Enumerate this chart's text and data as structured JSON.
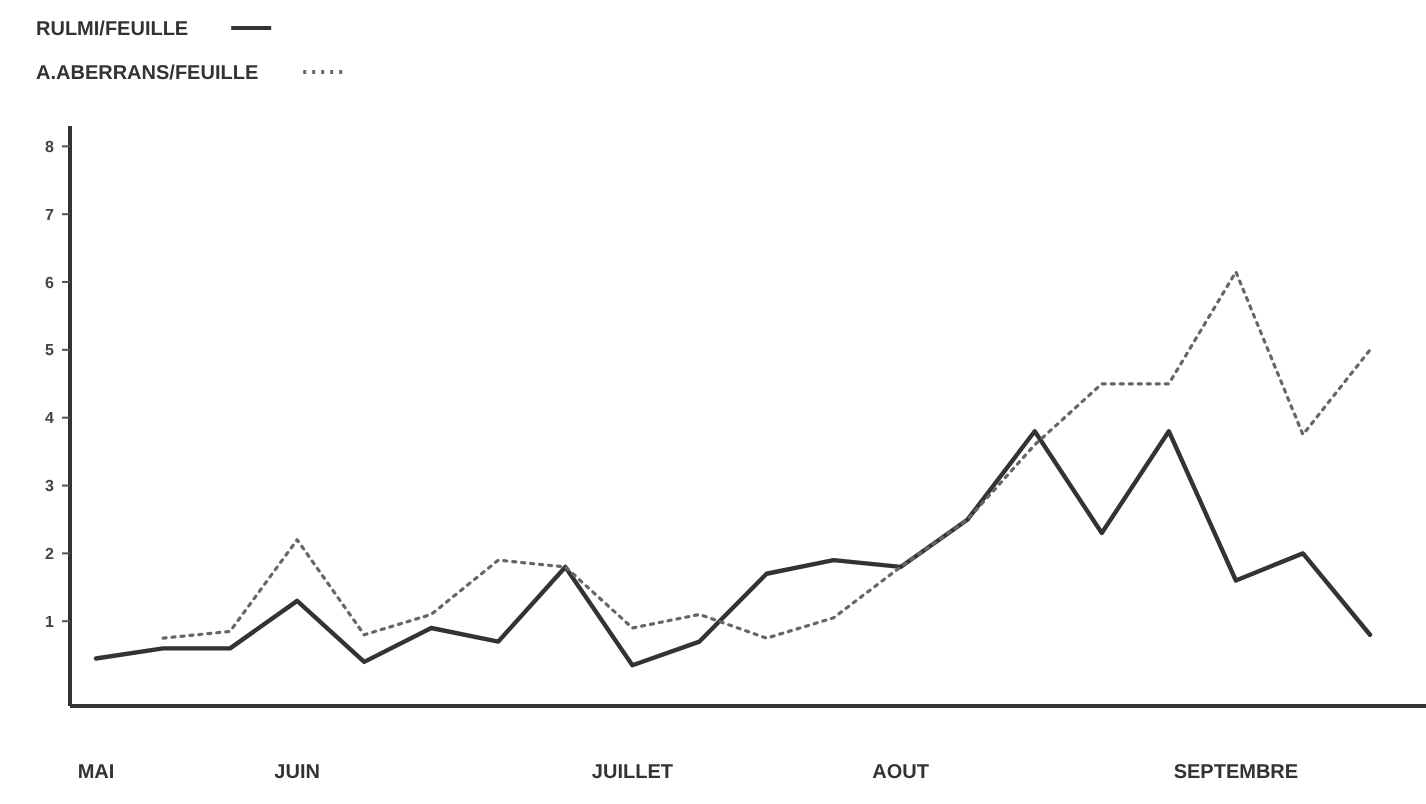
{
  "chart_data": {
    "type": "line",
    "categories": [
      "MAI",
      null,
      null,
      "JUIN",
      null,
      null,
      null,
      null,
      "JUILLET",
      null,
      null,
      null,
      "AOUT",
      null,
      null,
      null,
      null,
      "SEPTEMBRE",
      null,
      null
    ],
    "series": [
      {
        "name": "RULMI/FEUILLE",
        "color": "#333333",
        "line_style": "solid",
        "values": [
          0.45,
          0.6,
          0.6,
          1.3,
          0.4,
          0.9,
          0.7,
          1.8,
          0.35,
          0.7,
          1.7,
          1.9,
          1.8,
          2.5,
          3.8,
          2.3,
          3.8,
          1.6,
          2.0,
          0.8
        ]
      },
      {
        "name": "A.ABERRANS/FEUILLE",
        "color": "#666666",
        "line_style": "dotted",
        "values": [
          null,
          0.75,
          0.85,
          2.2,
          0.8,
          1.1,
          1.9,
          1.8,
          0.9,
          1.1,
          0.75,
          1.05,
          1.8,
          2.5,
          3.6,
          4.5,
          4.5,
          6.15,
          3.75,
          5.0
        ]
      }
    ],
    "ylim": [
      -0.25,
      8.3
    ],
    "yticks": [
      1,
      2,
      3,
      4,
      5,
      6,
      7,
      8
    ],
    "legend": "top left"
  }
}
